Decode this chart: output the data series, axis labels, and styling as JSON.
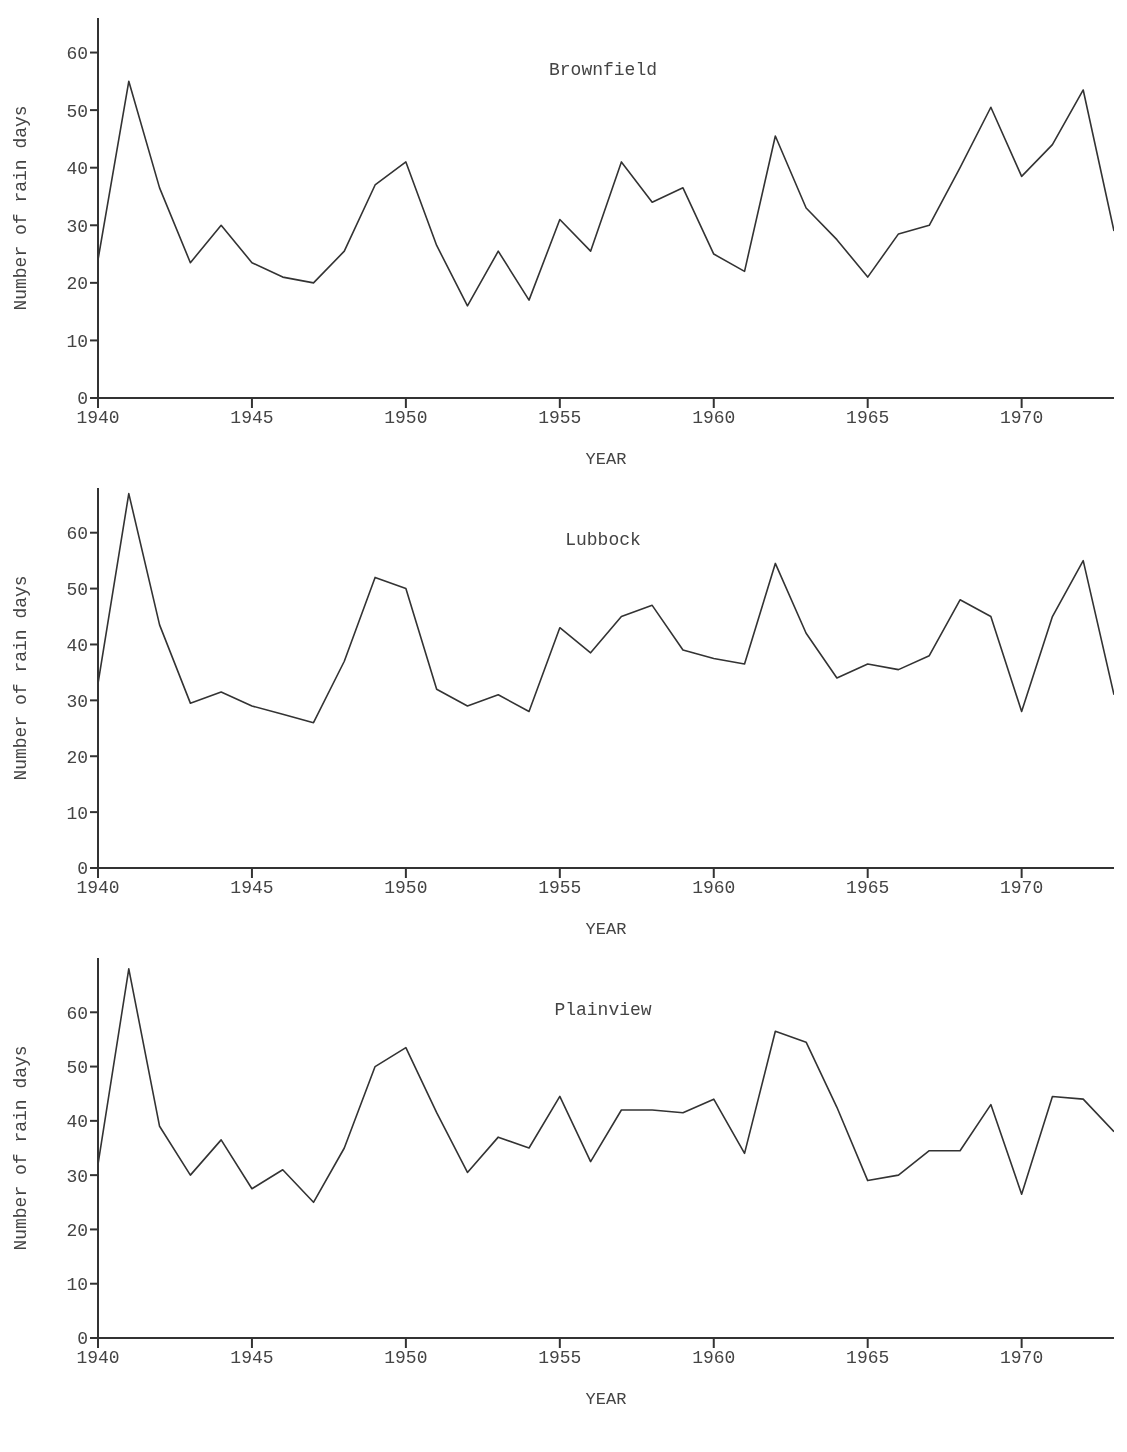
{
  "chart_data": [
    {
      "type": "line",
      "title": "Brownfield",
      "xlabel": "YEAR",
      "ylabel": "Number of rain days",
      "x": [
        1940,
        1941,
        1942,
        1943,
        1944,
        1945,
        1946,
        1947,
        1948,
        1949,
        1950,
        1951,
        1952,
        1953,
        1954,
        1955,
        1956,
        1957,
        1958,
        1959,
        1960,
        1961,
        1962,
        1963,
        1964,
        1965,
        1966,
        1967,
        1968,
        1969,
        1970,
        1971,
        1972,
        1973
      ],
      "series": [
        {
          "color": "#333333",
          "values": [
            24,
            55,
            36.5,
            23.5,
            30,
            23.5,
            21,
            20,
            25.5,
            37,
            41,
            26.5,
            16,
            25.5,
            17,
            31,
            25.5,
            41,
            34,
            36.5,
            25,
            22,
            45.5,
            33,
            27.5,
            21,
            28.5,
            30,
            40,
            50.5,
            38.5,
            44,
            53.5,
            29
          ]
        }
      ],
      "xlim": [
        1940,
        1973
      ],
      "xticks": [
        1940,
        1945,
        1950,
        1955,
        1960,
        1965,
        1970
      ],
      "ylim": [
        0,
        66
      ],
      "yticks": [
        0,
        10,
        20,
        30,
        40,
        50,
        60
      ],
      "grid": false,
      "legend": false,
      "marker": "none",
      "line_style": "solid"
    },
    {
      "type": "line",
      "title": "Lubbock",
      "xlabel": "YEAR",
      "ylabel": "Number of rain days",
      "x": [
        1940,
        1941,
        1942,
        1943,
        1944,
        1945,
        1946,
        1947,
        1948,
        1949,
        1950,
        1951,
        1952,
        1953,
        1954,
        1955,
        1956,
        1957,
        1958,
        1959,
        1960,
        1961,
        1962,
        1963,
        1964,
        1965,
        1966,
        1967,
        1968,
        1969,
        1970,
        1971,
        1972,
        1973
      ],
      "series": [
        {
          "color": "#333333",
          "values": [
            33,
            67,
            43.5,
            29.5,
            31.5,
            29,
            27.5,
            26,
            37,
            52,
            50,
            32,
            29,
            31,
            28,
            43,
            38.5,
            45,
            47,
            39,
            37.5,
            36.5,
            54.5,
            42,
            34,
            36.5,
            35.5,
            38,
            48,
            45,
            28,
            45,
            55,
            31
          ]
        }
      ],
      "xlim": [
        1940,
        1973
      ],
      "xticks": [
        1940,
        1945,
        1950,
        1955,
        1960,
        1965,
        1970
      ],
      "ylim": [
        0,
        68
      ],
      "yticks": [
        0,
        10,
        20,
        30,
        40,
        50,
        60
      ],
      "grid": false,
      "legend": false,
      "marker": "none",
      "line_style": "solid"
    },
    {
      "type": "line",
      "title": "Plainview",
      "xlabel": "YEAR",
      "ylabel": "Number of rain days",
      "x": [
        1940,
        1941,
        1942,
        1943,
        1944,
        1945,
        1946,
        1947,
        1948,
        1949,
        1950,
        1951,
        1952,
        1953,
        1954,
        1955,
        1956,
        1957,
        1958,
        1959,
        1960,
        1961,
        1962,
        1963,
        1964,
        1965,
        1966,
        1967,
        1968,
        1969,
        1970,
        1971,
        1972,
        1973
      ],
      "series": [
        {
          "color": "#333333",
          "values": [
            32,
            68,
            39,
            30,
            36.5,
            27.5,
            31,
            25,
            35,
            50,
            53.5,
            41.5,
            30.5,
            37,
            35,
            44.5,
            32.5,
            42,
            42,
            41.5,
            44,
            34,
            56.5,
            54.5,
            42.5,
            29,
            30,
            34.5,
            34.5,
            43,
            26.5,
            44.5,
            44,
            38
          ]
        }
      ],
      "xlim": [
        1940,
        1973
      ],
      "xticks": [
        1940,
        1945,
        1950,
        1955,
        1960,
        1965,
        1970
      ],
      "ylim": [
        0,
        70
      ],
      "yticks": [
        0,
        10,
        20,
        30,
        40,
        50,
        60
      ],
      "grid": false,
      "legend": false,
      "marker": "none",
      "line_style": "solid"
    }
  ]
}
